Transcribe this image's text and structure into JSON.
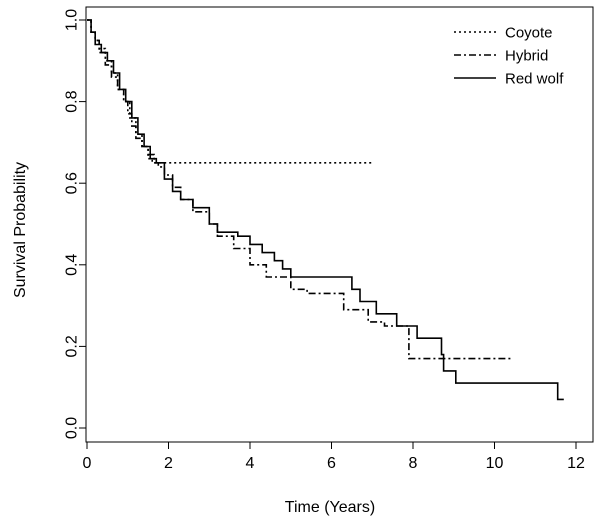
{
  "chart_data": {
    "type": "line",
    "title": "",
    "xlabel": "Time (Years)",
    "ylabel": "Survival Probability",
    "xlim": [
      0,
      12
    ],
    "ylim": [
      0,
      1
    ],
    "x_ticks": [
      0,
      2,
      4,
      6,
      8,
      10,
      12
    ],
    "x_tick_labels": [
      "0",
      "2",
      "4",
      "6",
      "8",
      "10",
      "12"
    ],
    "y_ticks": [
      0,
      0.2,
      0.4,
      0.6,
      0.8,
      1.0
    ],
    "y_tick_labels": [
      "0.0",
      "0.2",
      "0.4",
      "0.6",
      "0.8",
      "1.0"
    ],
    "grid": false,
    "legend_position": "top-right",
    "series": [
      {
        "name": "Coyote",
        "style": "dotted",
        "color": "#000000",
        "x": [
          0,
          0.1,
          0.2,
          0.3,
          0.45,
          0.6,
          0.75,
          0.9,
          1.05,
          1.2,
          1.35,
          1.5,
          1.6,
          1.7,
          2.0,
          7.0
        ],
        "y": [
          1.0,
          0.97,
          0.95,
          0.93,
          0.9,
          0.87,
          0.83,
          0.8,
          0.76,
          0.72,
          0.69,
          0.66,
          0.65,
          0.65,
          0.65,
          0.65
        ]
      },
      {
        "name": "Hybrid",
        "style": "dashdot",
        "color": "#000000",
        "x": [
          0,
          0.1,
          0.2,
          0.3,
          0.45,
          0.6,
          0.75,
          0.9,
          1.0,
          1.1,
          1.2,
          1.35,
          1.5,
          1.65,
          1.75,
          1.9,
          2.1,
          2.3,
          2.6,
          3.0,
          3.2,
          3.6,
          4.0,
          4.4,
          5.0,
          5.4,
          6.3,
          6.9,
          7.3,
          7.9,
          8.6,
          10.4
        ],
        "y": [
          1.0,
          0.97,
          0.95,
          0.92,
          0.89,
          0.86,
          0.83,
          0.8,
          0.77,
          0.74,
          0.71,
          0.69,
          0.67,
          0.65,
          0.64,
          0.62,
          0.59,
          0.56,
          0.53,
          0.5,
          0.47,
          0.44,
          0.4,
          0.37,
          0.34,
          0.33,
          0.29,
          0.26,
          0.25,
          0.17,
          0.17,
          0.17
        ]
      },
      {
        "name": "Red wolf",
        "style": "solid",
        "color": "#000000",
        "x": [
          0,
          0.1,
          0.2,
          0.35,
          0.5,
          0.65,
          0.8,
          0.95,
          1.1,
          1.25,
          1.4,
          1.55,
          1.7,
          1.9,
          2.1,
          2.3,
          2.6,
          2.9,
          3.0,
          3.2,
          3.7,
          4.0,
          4.3,
          4.6,
          4.8,
          5.0,
          6.5,
          6.7,
          7.1,
          7.6,
          8.1,
          8.7,
          8.75,
          9.05,
          9.2,
          11.55,
          11.7
        ],
        "y": [
          1.0,
          0.97,
          0.94,
          0.92,
          0.9,
          0.87,
          0.83,
          0.8,
          0.76,
          0.72,
          0.69,
          0.66,
          0.65,
          0.61,
          0.58,
          0.56,
          0.54,
          0.54,
          0.5,
          0.48,
          0.47,
          0.45,
          0.43,
          0.41,
          0.39,
          0.37,
          0.34,
          0.31,
          0.28,
          0.25,
          0.22,
          0.18,
          0.14,
          0.11,
          0.11,
          0.07,
          0.07
        ]
      }
    ]
  }
}
